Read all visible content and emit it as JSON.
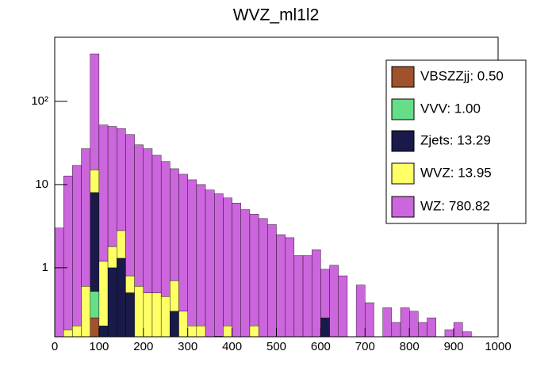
{
  "chart_data": {
    "type": "histogram",
    "title": "WVZ_ml1l2",
    "bins": [
      0,
      20,
      40,
      60,
      80,
      100,
      120,
      140,
      160,
      180,
      200,
      220,
      240,
      260,
      280,
      300,
      320,
      340,
      360,
      380,
      400,
      420,
      440,
      460,
      480,
      500,
      520,
      540,
      560,
      580,
      600,
      620,
      640,
      660,
      680,
      700,
      720,
      740,
      760,
      780,
      800,
      820,
      840,
      860,
      880,
      900,
      920,
      940,
      960,
      980,
      1000
    ],
    "series": [
      {
        "name": "VBSZZjj: 0.50",
        "color": "#a0522d",
        "values": [
          0,
          0,
          0,
          0,
          0.25,
          0,
          0,
          0,
          0,
          0,
          0,
          0,
          0,
          0,
          0,
          0,
          0,
          0,
          0,
          0,
          0,
          0,
          0,
          0,
          0,
          0,
          0,
          0,
          0,
          0,
          0,
          0,
          0,
          0,
          0,
          0,
          0,
          0,
          0,
          0,
          0,
          0,
          0,
          0,
          0,
          0,
          0,
          0,
          0,
          0
        ]
      },
      {
        "name": "VVV: 1.00",
        "color": "#66dd88",
        "values": [
          0,
          0,
          0,
          0,
          0.27,
          0,
          0,
          0,
          0,
          0,
          0,
          0,
          0,
          0,
          0,
          0,
          0,
          0,
          0,
          0,
          0,
          0,
          0,
          0,
          0,
          0,
          0,
          0,
          0,
          0,
          0,
          0,
          0,
          0,
          0,
          0,
          0,
          0,
          0,
          0,
          0,
          0,
          0,
          0,
          0,
          0,
          0,
          0,
          0,
          0
        ]
      },
      {
        "name": "Zjets: 13.29",
        "color": "#1a1a4a",
        "values": [
          0,
          0,
          0,
          0,
          7.5,
          0.2,
          1.0,
          1.3,
          0.5,
          0,
          0,
          0,
          0,
          0.3,
          0,
          0,
          0,
          0,
          0,
          0,
          0,
          0,
          0,
          0,
          0,
          0,
          0,
          0,
          0,
          0,
          0.25,
          0,
          0,
          0,
          0,
          0,
          0,
          0,
          0,
          0,
          0,
          0,
          0,
          0,
          0,
          0,
          0,
          0,
          0,
          0
        ]
      },
      {
        "name": "WVZ: 13.95",
        "color": "#ffff66",
        "values": [
          0,
          0.18,
          0.2,
          0.6,
          7,
          1.0,
          0.8,
          1.5,
          0.3,
          0.6,
          0.5,
          0.5,
          0.45,
          0.4,
          0.3,
          0.2,
          0.2,
          0,
          0.15,
          0.2,
          0,
          0,
          0.2,
          0,
          0,
          0,
          0,
          0,
          0,
          0,
          0,
          0,
          0,
          0,
          0,
          0,
          0,
          0,
          0,
          0,
          0,
          0,
          0,
          0,
          0,
          0,
          0,
          0,
          0,
          0
        ]
      },
      {
        "name": "WZ: 780.82",
        "color": "#cc66dd",
        "values": [
          3.0,
          12.5,
          16.8,
          26.4,
          357,
          50.8,
          48.2,
          44.2,
          39.2,
          29.4,
          26.5,
          22,
          18.5,
          14.8,
          13,
          11.2,
          9.8,
          8.6,
          7.6,
          6.7,
          6.0,
          5.0,
          4.2,
          3.9,
          3.3,
          2.5,
          2.3,
          1.4,
          1.4,
          1.65,
          0.71,
          1.07,
          0.8,
          0,
          0.62,
          0.38,
          0,
          0.33,
          0.22,
          0.33,
          0.3,
          0.22,
          0.25,
          0,
          0.18,
          0.22,
          0.17,
          0,
          0,
          0
        ]
      }
    ],
    "xlim": [
      0,
      1000
    ],
    "xticks": [
      0,
      100,
      200,
      300,
      400,
      500,
      600,
      700,
      800,
      900,
      1000
    ],
    "ylim": [
      0.148,
      590
    ],
    "yticks": [
      1,
      10,
      {
        "value": 100,
        "label": "10²"
      }
    ],
    "log_y": true,
    "legend": "upper right"
  }
}
